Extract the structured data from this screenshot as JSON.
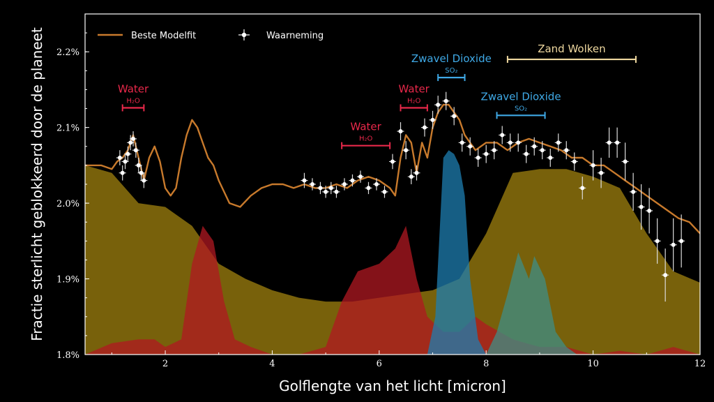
{
  "chart_data": {
    "type": "line",
    "xlabel": "Golflengte van het licht [micron]",
    "ylabel": "Fractie sterlicht geblokkeerd door de planeet",
    "xlim": [
      0.5,
      12
    ],
    "ylim": [
      1.8,
      2.25
    ],
    "xticks": [
      2,
      4,
      6,
      8,
      10,
      12
    ],
    "yticks": [
      1.8,
      1.9,
      2.0,
      2.1,
      2.2
    ],
    "ytick_labels": [
      "1.8%",
      "1.9%",
      "2.0%",
      "2.1%",
      "2.2%"
    ],
    "grid": false,
    "legend_position": "top-left",
    "legend": [
      "Beste Modelfit",
      "Waarneming"
    ],
    "series": [
      {
        "name": "Beste Modelfit",
        "color": "#c87a2c",
        "x": [
          0.5,
          0.8,
          1.0,
          1.1,
          1.2,
          1.3,
          1.4,
          1.5,
          1.6,
          1.7,
          1.8,
          1.9,
          2.0,
          2.1,
          2.2,
          2.3,
          2.4,
          2.5,
          2.6,
          2.7,
          2.8,
          2.9,
          3.0,
          3.2,
          3.4,
          3.6,
          3.8,
          4.0,
          4.2,
          4.4,
          4.6,
          4.8,
          5.0,
          5.2,
          5.4,
          5.6,
          5.8,
          6.0,
          6.1,
          6.2,
          6.3,
          6.4,
          6.5,
          6.6,
          6.7,
          6.8,
          6.9,
          7.0,
          7.1,
          7.2,
          7.3,
          7.4,
          7.5,
          7.6,
          7.7,
          7.8,
          8.0,
          8.2,
          8.4,
          8.6,
          8.8,
          9.0,
          9.2,
          9.4,
          9.6,
          9.8,
          10.0,
          10.2,
          10.4,
          10.6,
          10.8,
          11.0,
          11.2,
          11.4,
          11.6,
          11.8,
          12.0
        ],
        "y": [
          2.05,
          2.05,
          2.045,
          2.055,
          2.06,
          2.07,
          2.09,
          2.06,
          2.03,
          2.06,
          2.075,
          2.055,
          2.02,
          2.01,
          2.02,
          2.06,
          2.09,
          2.11,
          2.1,
          2.08,
          2.06,
          2.05,
          2.03,
          2.0,
          1.995,
          2.01,
          2.02,
          2.025,
          2.025,
          2.02,
          2.025,
          2.02,
          2.02,
          2.025,
          2.02,
          2.03,
          2.035,
          2.03,
          2.025,
          2.02,
          2.01,
          2.06,
          2.09,
          2.08,
          2.04,
          2.08,
          2.06,
          2.1,
          2.12,
          2.13,
          2.13,
          2.12,
          2.11,
          2.09,
          2.08,
          2.07,
          2.08,
          2.08,
          2.07,
          2.08,
          2.085,
          2.08,
          2.075,
          2.07,
          2.06,
          2.06,
          2.05,
          2.05,
          2.04,
          2.03,
          2.02,
          2.01,
          2.0,
          1.99,
          1.98,
          1.975,
          1.96
        ]
      },
      {
        "name": "Waarneming",
        "color": "#ffffff",
        "x": [
          1.15,
          1.2,
          1.25,
          1.3,
          1.35,
          1.4,
          1.45,
          1.5,
          1.55,
          1.6,
          4.6,
          4.75,
          4.9,
          5.0,
          5.1,
          5.2,
          5.35,
          5.5,
          5.65,
          5.8,
          5.95,
          6.1,
          6.25,
          6.4,
          6.5,
          6.6,
          6.7,
          6.85,
          7.0,
          7.1,
          7.25,
          7.4,
          7.55,
          7.7,
          7.85,
          8.0,
          8.15,
          8.3,
          8.45,
          8.6,
          8.75,
          8.9,
          9.05,
          9.2,
          9.35,
          9.5,
          9.65,
          9.8,
          10.0,
          10.15,
          10.3,
          10.45,
          10.6,
          10.75,
          10.9,
          11.05,
          11.2,
          11.35,
          11.5,
          11.65
        ],
        "y": [
          2.06,
          2.04,
          2.055,
          2.065,
          2.08,
          2.085,
          2.07,
          2.05,
          2.04,
          2.03,
          2.03,
          2.025,
          2.02,
          2.015,
          2.02,
          2.015,
          2.025,
          2.03,
          2.035,
          2.02,
          2.025,
          2.015,
          2.055,
          2.095,
          2.07,
          2.035,
          2.04,
          2.1,
          2.11,
          2.13,
          2.135,
          2.115,
          2.08,
          2.075,
          2.06,
          2.065,
          2.07,
          2.09,
          2.08,
          2.08,
          2.065,
          2.075,
          2.07,
          2.06,
          2.08,
          2.07,
          2.055,
          2.02,
          2.05,
          2.04,
          2.08,
          2.08,
          2.055,
          2.015,
          1.995,
          1.99,
          1.95,
          1.905,
          1.945,
          1.95
        ],
        "yerr": [
          0.01,
          0.01,
          0.01,
          0.01,
          0.01,
          0.01,
          0.01,
          0.01,
          0.01,
          0.01,
          0.01,
          0.008,
          0.008,
          0.008,
          0.008,
          0.008,
          0.008,
          0.008,
          0.008,
          0.008,
          0.008,
          0.008,
          0.01,
          0.012,
          0.012,
          0.01,
          0.01,
          0.012,
          0.012,
          0.012,
          0.012,
          0.012,
          0.012,
          0.012,
          0.012,
          0.012,
          0.012,
          0.012,
          0.012,
          0.012,
          0.012,
          0.012,
          0.012,
          0.012,
          0.012,
          0.012,
          0.012,
          0.015,
          0.02,
          0.02,
          0.02,
          0.02,
          0.025,
          0.025,
          0.03,
          0.03,
          0.03,
          0.035,
          0.035,
          0.035
        ]
      }
    ],
    "contributions": [
      {
        "color": "#a0820f",
        "x": [
          0.5,
          1.0,
          1.5,
          2.0,
          2.5,
          3.0,
          3.5,
          4.0,
          4.5,
          5.0,
          5.5,
          6.0,
          6.5,
          7.0,
          7.5,
          8.0,
          8.5,
          9.0,
          9.5,
          10.0,
          10.5,
          11.0,
          11.5,
          12.0
        ],
        "y": [
          2.05,
          2.04,
          2.0,
          1.995,
          1.97,
          1.92,
          1.9,
          1.885,
          1.875,
          1.87,
          1.87,
          1.875,
          1.88,
          1.885,
          1.9,
          1.96,
          2.04,
          2.045,
          2.045,
          2.035,
          2.02,
          1.96,
          1.91,
          1.895
        ]
      },
      {
        "color": "#b01822",
        "x": [
          0.5,
          1.0,
          1.5,
          1.8,
          2.0,
          2.3,
          2.5,
          2.7,
          2.9,
          3.1,
          3.3,
          3.6,
          4.0,
          4.5,
          5.0,
          5.3,
          5.6,
          6.0,
          6.3,
          6.5,
          6.7,
          6.9,
          7.2,
          7.5,
          7.8,
          8.0,
          8.5,
          9.0,
          9.5,
          10.0,
          10.5,
          11.0,
          11.5,
          12.0
        ],
        "y": [
          1.8,
          1.815,
          1.82,
          1.82,
          1.81,
          1.82,
          1.92,
          1.97,
          1.95,
          1.87,
          1.82,
          1.81,
          1.8,
          1.8,
          1.81,
          1.87,
          1.91,
          1.92,
          1.94,
          1.97,
          1.9,
          1.85,
          1.83,
          1.83,
          1.85,
          1.84,
          1.82,
          1.81,
          1.81,
          1.8,
          1.805,
          1.8,
          1.81,
          1.8
        ]
      },
      {
        "color": "#1e7eb0",
        "x": [
          6.9,
          7.05,
          7.2,
          7.3,
          7.4,
          7.5,
          7.6,
          7.7,
          7.85,
          8.0
        ],
        "y": [
          1.8,
          1.85,
          2.06,
          2.07,
          2.065,
          2.05,
          2.01,
          1.9,
          1.82,
          1.8
        ]
      },
      {
        "color": "#3f8e86",
        "x": [
          8.0,
          8.2,
          8.4,
          8.6,
          8.8,
          8.9,
          9.1,
          9.3,
          9.5,
          9.7
        ],
        "y": [
          1.8,
          1.83,
          1.88,
          1.935,
          1.9,
          1.93,
          1.9,
          1.83,
          1.81,
          1.8
        ]
      }
    ],
    "annotations": [
      {
        "label": "Water",
        "formula": "H₂O",
        "color": "#e8284a",
        "x_start": 1.2,
        "x_end": 1.6,
        "y": 2.126
      },
      {
        "label": "Water",
        "formula": "H₂O",
        "color": "#e8284a",
        "x_start": 5.3,
        "x_end": 6.2,
        "y": 2.076
      },
      {
        "label": "Water",
        "formula": "H₂O",
        "color": "#e8284a",
        "x_start": 6.4,
        "x_end": 6.9,
        "y": 2.126
      },
      {
        "label": "Zwavel Dioxide",
        "formula": "SO₂",
        "color": "#3fa9e6",
        "x_start": 7.1,
        "x_end": 7.6,
        "y": 2.166
      },
      {
        "label": "Zwavel Dioxide",
        "formula": "SO₂",
        "color": "#3fa9e6",
        "x_start": 8.2,
        "x_end": 9.1,
        "y": 2.116
      },
      {
        "label": "Zand Wolken",
        "formula": "",
        "color": "#f0d9a0",
        "x_start": 8.4,
        "x_end": 10.8,
        "y": 2.19
      }
    ]
  }
}
